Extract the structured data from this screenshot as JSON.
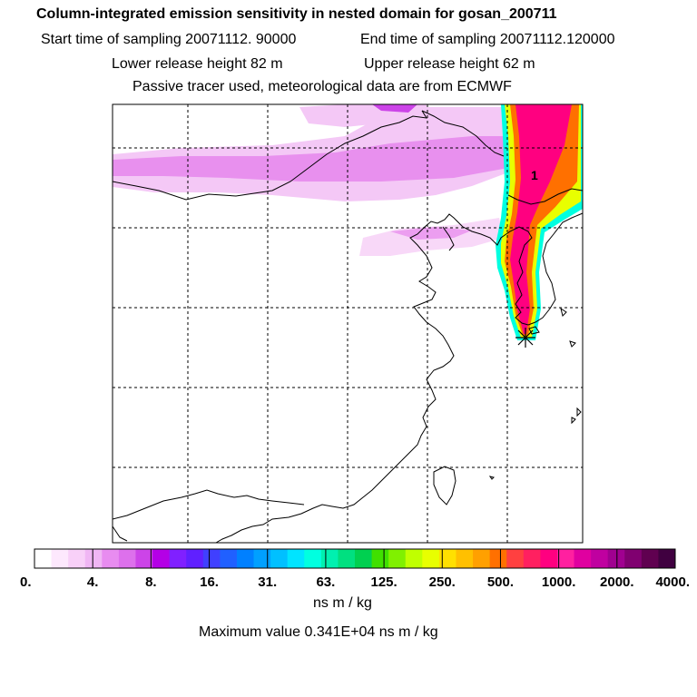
{
  "header": {
    "title": "Column-integrated emission sensitivity in nested domain for gosan_200711",
    "start_label": "Start time of sampling 20071112. 90000",
    "end_label": "End time of sampling 20071112.120000",
    "lower_label": "Lower release height   82 m",
    "upper_label": "Upper release height   62 m",
    "tracer_label": "Passive tracer used, meteorological data are from ECMWF"
  },
  "map": {
    "marker_label": "1",
    "release_marker": "star-icon"
  },
  "colorbar": {
    "tick_labels": [
      "0.",
      "4.",
      "8.",
      "16.",
      "31.",
      "63.",
      "125.",
      "250.",
      "500.",
      "1000.",
      "2000.",
      "4000."
    ],
    "colors": [
      "#ffffff",
      "#fde8fd",
      "#f8d0f8",
      "#f0b6f4",
      "#e88cf0",
      "#dd70ec",
      "#cc44e8",
      "#b400e6",
      "#8020ff",
      "#6020ff",
      "#4040ff",
      "#2060ff",
      "#0080ff",
      "#00a0ff",
      "#00c0ff",
      "#00e4ff",
      "#00ffe0",
      "#00f0b0",
      "#00e080",
      "#00d050",
      "#40e000",
      "#80f000",
      "#c0ff00",
      "#e8ff00",
      "#ffe000",
      "#ffc000",
      "#ffa000",
      "#ff7000",
      "#ff4040",
      "#ff2060",
      "#ff0080",
      "#ff20a0",
      "#e000a0",
      "#c000a0",
      "#a00090",
      "#800070",
      "#600050",
      "#400040"
    ],
    "units": "ns m / kg"
  },
  "footer": {
    "max_value": "Maximum value  0.341E+04 ns m / kg"
  }
}
